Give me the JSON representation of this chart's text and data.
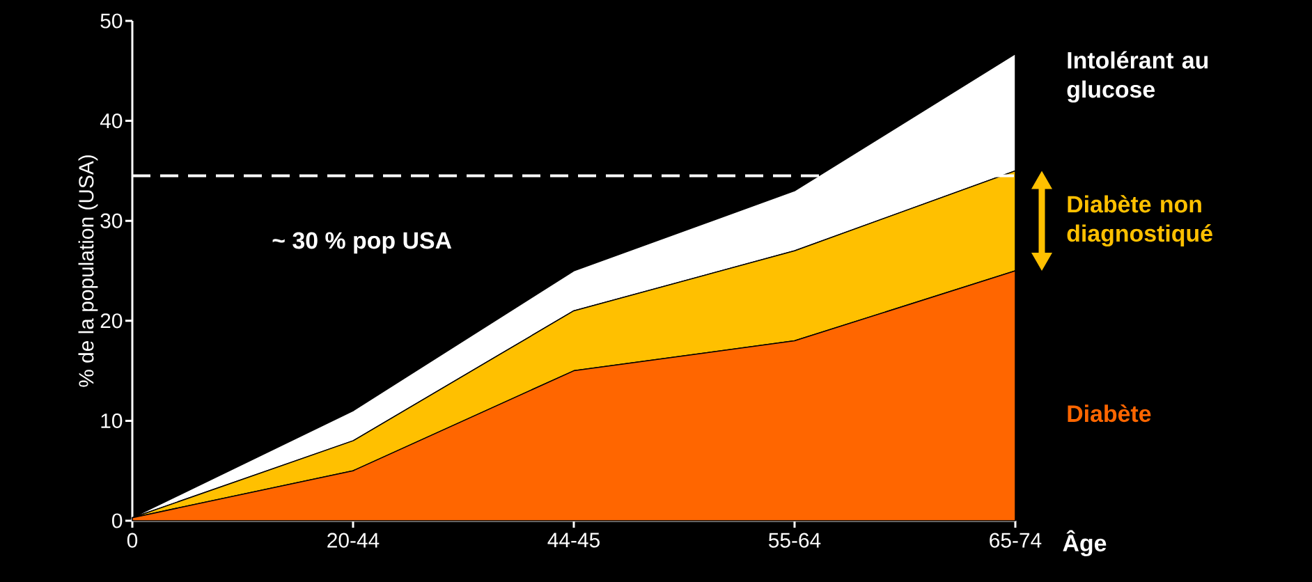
{
  "chart_data": {
    "type": "area",
    "stacked": true,
    "categories": [
      "0",
      "20-44",
      "44-45",
      "55-64",
      "65-74"
    ],
    "xlabel": "Âge",
    "ylabel": "% de la population (USA)",
    "ylim": [
      0,
      50
    ],
    "yticks": [
      0,
      10,
      20,
      30,
      40,
      50
    ],
    "series": [
      {
        "name": "Diabète",
        "color": "#ff6600",
        "values": [
          0.3,
          5,
          15,
          18,
          25
        ]
      },
      {
        "name": "Diabète non diagnostiqué",
        "color": "#ffc000",
        "values": [
          0,
          3,
          6,
          9,
          10
        ]
      },
      {
        "name": "Intolérant au glucose",
        "color": "#ffffff",
        "values": [
          0,
          3,
          4,
          6,
          11.7
        ]
      }
    ],
    "ref_lines": [
      {
        "axis": "y",
        "value": 34.5,
        "color": "#ffffff",
        "line_style": "dashed"
      }
    ],
    "annotations": [
      "~ 30 % pop USA"
    ],
    "grid": false,
    "legend": false
  }
}
